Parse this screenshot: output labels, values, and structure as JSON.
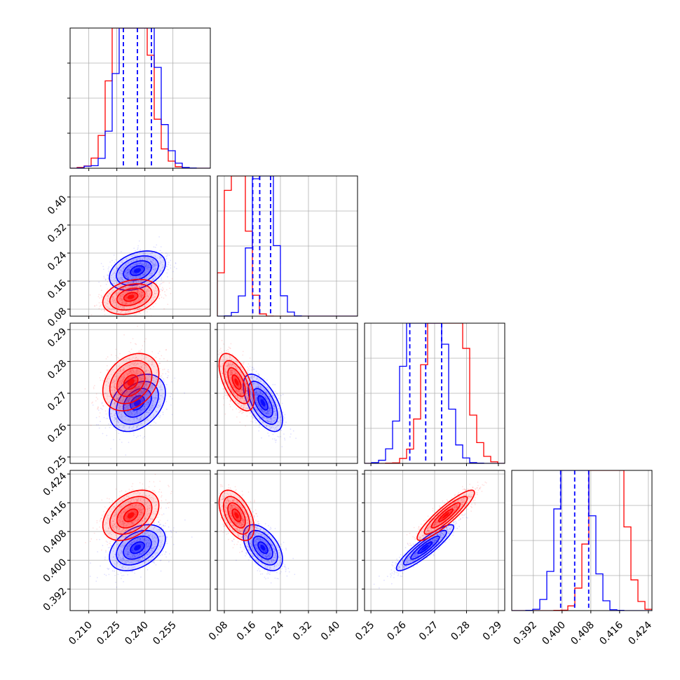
{
  "chart_data": {
    "type": "corner",
    "grid": true,
    "colors": {
      "sample_a": "#ff0000",
      "sample_b": "#0000ff"
    },
    "parameters": [
      {
        "range": [
          0.2,
          0.275
        ],
        "ticks": [
          0.21,
          0.225,
          0.24,
          0.255
        ],
        "tick_labels": [
          "0.210",
          "0.225",
          "0.240",
          "0.255"
        ],
        "red": {
          "mean": 0.2325,
          "sd": 0.0075
        },
        "blue": {
          "mean": 0.236,
          "sd": 0.0075
        },
        "quantiles_blue": [
          0.2285,
          0.236,
          0.2435
        ],
        "hist_ylim": 0.092
      },
      {
        "range": [
          0.06,
          0.46
        ],
        "ticks": [
          0.08,
          0.16,
          0.24,
          0.32,
          0.4
        ],
        "tick_labels": [
          "0.08",
          "0.16",
          "0.24",
          "0.32",
          "0.40"
        ],
        "red": {
          "mean": 0.115,
          "sd": 0.025
        },
        "blue": {
          "mean": 0.19,
          "sd": 0.028
        },
        "quantiles_blue": [
          0.161,
          0.181,
          0.212
        ],
        "hist_ylim": 0.21
      },
      {
        "range": [
          0.248,
          0.292
        ],
        "ticks": [
          0.25,
          0.26,
          0.27,
          0.28,
          0.29
        ],
        "tick_labels": [
          "0.25",
          "0.26",
          "0.27",
          "0.28",
          "0.29"
        ],
        "red": {
          "mean": 0.2735,
          "sd": 0.0045
        },
        "blue": {
          "mean": 0.267,
          "sd": 0.0045
        },
        "quantiles_blue": [
          0.2622,
          0.2672,
          0.2722
        ],
        "hist_ylim": 0.09
      },
      {
        "range": [
          0.386,
          0.425
        ],
        "ticks": [
          0.392,
          0.4,
          0.408,
          0.416,
          0.424
        ],
        "tick_labels": [
          "0.392",
          "0.400",
          "0.408",
          "0.416",
          "0.424"
        ],
        "red": {
          "mean": 0.4125,
          "sd": 0.0035
        },
        "blue": {
          "mean": 0.4035,
          "sd": 0.0032
        },
        "quantiles_blue": [
          0.3996,
          0.4035,
          0.4074
        ],
        "hist_ylim": 0.105
      }
    ],
    "joint_correlations": {
      "1-0": {
        "red": 0.3,
        "blue": 0.35
      },
      "2-0": {
        "red": 0.3,
        "blue": 0.35
      },
      "2-1": {
        "red": -0.6,
        "blue": -0.6
      },
      "3-0": {
        "red": 0.4,
        "blue": 0.4
      },
      "3-1": {
        "red": -0.5,
        "blue": -0.5
      },
      "3-2": {
        "red": 0.9,
        "blue": 0.9
      }
    }
  }
}
